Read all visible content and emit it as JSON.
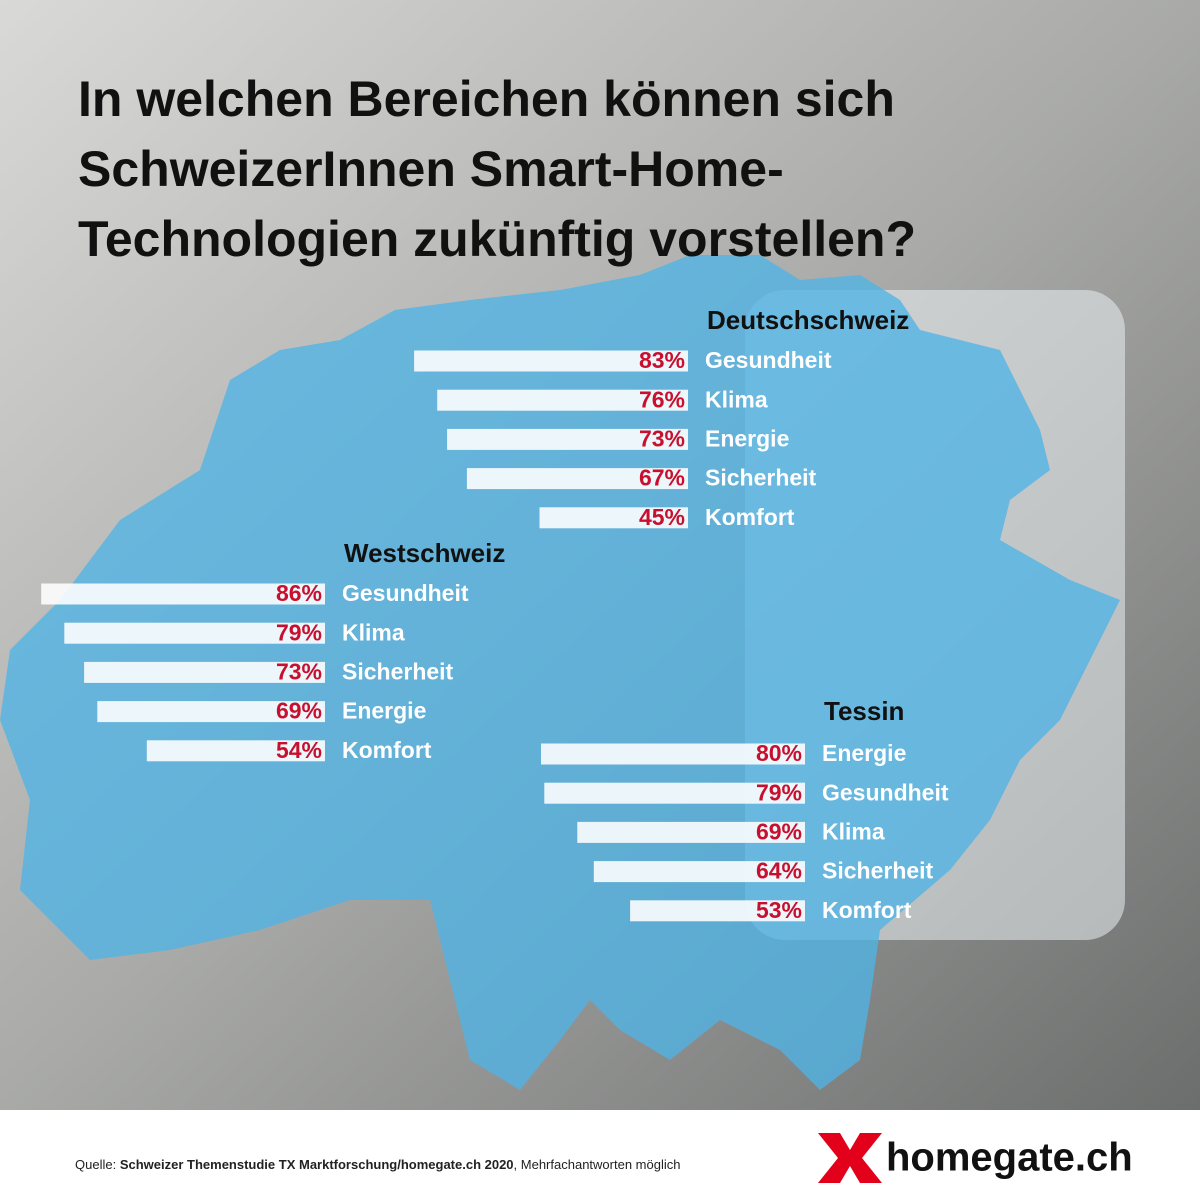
{
  "title": [
    "In welchen Bereichen können sich",
    "SchweizerInnen Smart-Home-",
    "Technologien zukünftig vorstellen?"
  ],
  "source": {
    "prefix": "Quelle:",
    "name": "Schweizer Themenstudie TX Marktforschung/homegate.ch 2020",
    "note": ", Mehrfachantworten möglich"
  },
  "logo": "homegate.ch",
  "chart_data": [
    {
      "type": "bar",
      "title": "Deutschschweiz",
      "color": "#ffffff",
      "categories": [
        "Gesundheit",
        "Klima",
        "Energie",
        "Sicherheit",
        "Komfort"
      ],
      "values": [
        83,
        76,
        73,
        67,
        45
      ],
      "value_labels": [
        "83%",
        "76%",
        "73%",
        "67%",
        "45%"
      ]
    },
    {
      "type": "bar",
      "title": "Westschweiz",
      "color": "#ffffff",
      "categories": [
        "Gesundheit",
        "Klima",
        "Sicherheit",
        "Energie",
        "Komfort"
      ],
      "values": [
        86,
        79,
        73,
        69,
        54
      ],
      "value_labels": [
        "86%",
        "79%",
        "73%",
        "69%",
        "54%"
      ]
    },
    {
      "type": "bar",
      "title": "Tessin",
      "color": "#ffffff",
      "categories": [
        "Energie",
        "Gesundheit",
        "Klima",
        "Sicherheit",
        "Komfort"
      ],
      "values": [
        80,
        79,
        69,
        64,
        53
      ],
      "value_labels": [
        "80%",
        "79%",
        "69%",
        "64%",
        "53%"
      ]
    }
  ]
}
